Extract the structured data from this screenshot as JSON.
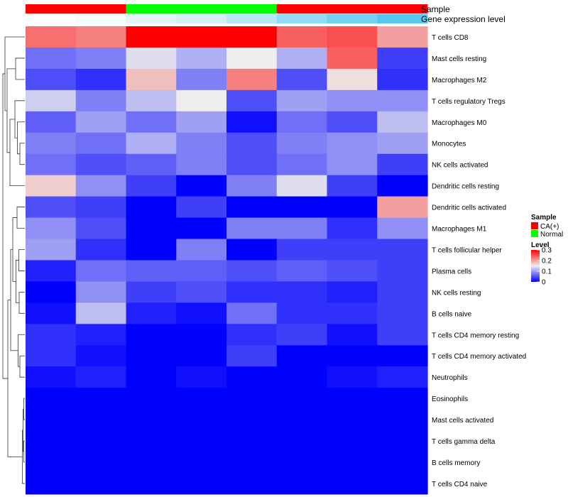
{
  "chart_data": {
    "type": "heatmap",
    "title": "",
    "annotation_labels": {
      "sample": "Sample",
      "expression": "Gene expression level"
    },
    "columns": [
      {
        "sample": "CA(+)",
        "expression": 0.0
      },
      {
        "sample": "CA(+)",
        "expression": 0.06
      },
      {
        "sample": "Normal",
        "expression": 0.18
      },
      {
        "sample": "Normal",
        "expression": 0.26
      },
      {
        "sample": "Normal",
        "expression": 0.42
      },
      {
        "sample": "CA(+)",
        "expression": 0.65
      },
      {
        "sample": "CA(+)",
        "expression": 0.82
      },
      {
        "sample": "CA(+)",
        "expression": 1.0
      }
    ],
    "rows": [
      "T cells CD8",
      "Mast cells resting",
      "Macrophages M2",
      "T cells regulatory  Tregs",
      "Macrophages M0",
      "Monocytes",
      "NK cells activated",
      "Dendritic cells resting",
      "Dendritic cells activated",
      "Macrophages M1",
      "T cells follicular helper",
      "Plasma cells",
      "NK cells resting",
      "B cells naive",
      "T cells CD4 memory resting",
      "T cells CD4 memory activated",
      "Neutrophils",
      "Eosinophils",
      "Mast cells activated",
      "T cells gamma delta",
      "B cells memory",
      "T cells CD4 naive"
    ],
    "values": [
      [
        0.23,
        0.22,
        0.3,
        0.3,
        0.3,
        0.24,
        0.25,
        0.2
      ],
      [
        0.07,
        0.08,
        0.14,
        0.11,
        0.15,
        0.11,
        0.24,
        0.04
      ],
      [
        0.05,
        0.03,
        0.18,
        0.08,
        0.22,
        0.05,
        0.16,
        0.03
      ],
      [
        0.13,
        0.08,
        0.12,
        0.15,
        0.05,
        0.1,
        0.09,
        0.09
      ],
      [
        0.06,
        0.1,
        0.07,
        0.1,
        0.01,
        0.07,
        0.05,
        0.12
      ],
      [
        0.08,
        0.07,
        0.11,
        0.08,
        0.05,
        0.08,
        0.09,
        0.1
      ],
      [
        0.07,
        0.05,
        0.06,
        0.08,
        0.05,
        0.07,
        0.09,
        0.04
      ],
      [
        0.17,
        0.09,
        0.04,
        0.0,
        0.08,
        0.14,
        0.04,
        0.0
      ],
      [
        0.05,
        0.04,
        0.0,
        0.04,
        0.0,
        0.0,
        0.0,
        0.2
      ],
      [
        0.09,
        0.05,
        0.0,
        0.0,
        0.08,
        0.08,
        0.03,
        0.09
      ],
      [
        0.1,
        0.03,
        0.0,
        0.08,
        0.0,
        0.04,
        0.04,
        0.04
      ],
      [
        0.02,
        0.07,
        0.06,
        0.06,
        0.05,
        0.06,
        0.05,
        0.04
      ],
      [
        0.0,
        0.09,
        0.04,
        0.05,
        0.03,
        0.03,
        0.02,
        0.04
      ],
      [
        0.01,
        0.12,
        0.02,
        0.01,
        0.07,
        0.03,
        0.03,
        0.04
      ],
      [
        0.03,
        0.02,
        0.0,
        0.0,
        0.03,
        0.04,
        0.01,
        0.04
      ],
      [
        0.03,
        0.01,
        0.0,
        0.0,
        0.04,
        0.0,
        0.0,
        0.0
      ],
      [
        0.01,
        0.02,
        0.0,
        0.01,
        0.0,
        0.0,
        0.01,
        0.02
      ],
      [
        0.0,
        0.0,
        0.0,
        0.0,
        0.0,
        0.0,
        0.0,
        0.0
      ],
      [
        0.0,
        0.0,
        0.0,
        0.0,
        0.0,
        0.0,
        0.0,
        0.0
      ],
      [
        0.0,
        0.0,
        0.0,
        0.0,
        0.0,
        0.0,
        0.0,
        0.0
      ],
      [
        0.0,
        0.0,
        0.0,
        0.0,
        0.0,
        0.0,
        0.0,
        0.0
      ],
      [
        0.0,
        0.0,
        0.0,
        0.0,
        0.0,
        0.0,
        0.0,
        0.0
      ]
    ],
    "value_range": [
      0,
      0.3
    ],
    "legend": {
      "sample_title": "Sample",
      "sample_entries": [
        {
          "label": "CA(+)",
          "color": "#ff0000"
        },
        {
          "label": "Normal",
          "color": "#00ff00"
        }
      ],
      "level_title": "Level",
      "level_ticks": [
        "0.3",
        "0.2",
        "0.1",
        "0"
      ],
      "level_values": [
        0.3,
        0.2,
        0.1,
        0
      ],
      "placement": "right"
    },
    "colors": {
      "low": "#0000ff",
      "mid": "#eeeeee",
      "high": "#ff0000",
      "expression_low": "#ffffff",
      "expression_high": "#56c7ee"
    }
  }
}
